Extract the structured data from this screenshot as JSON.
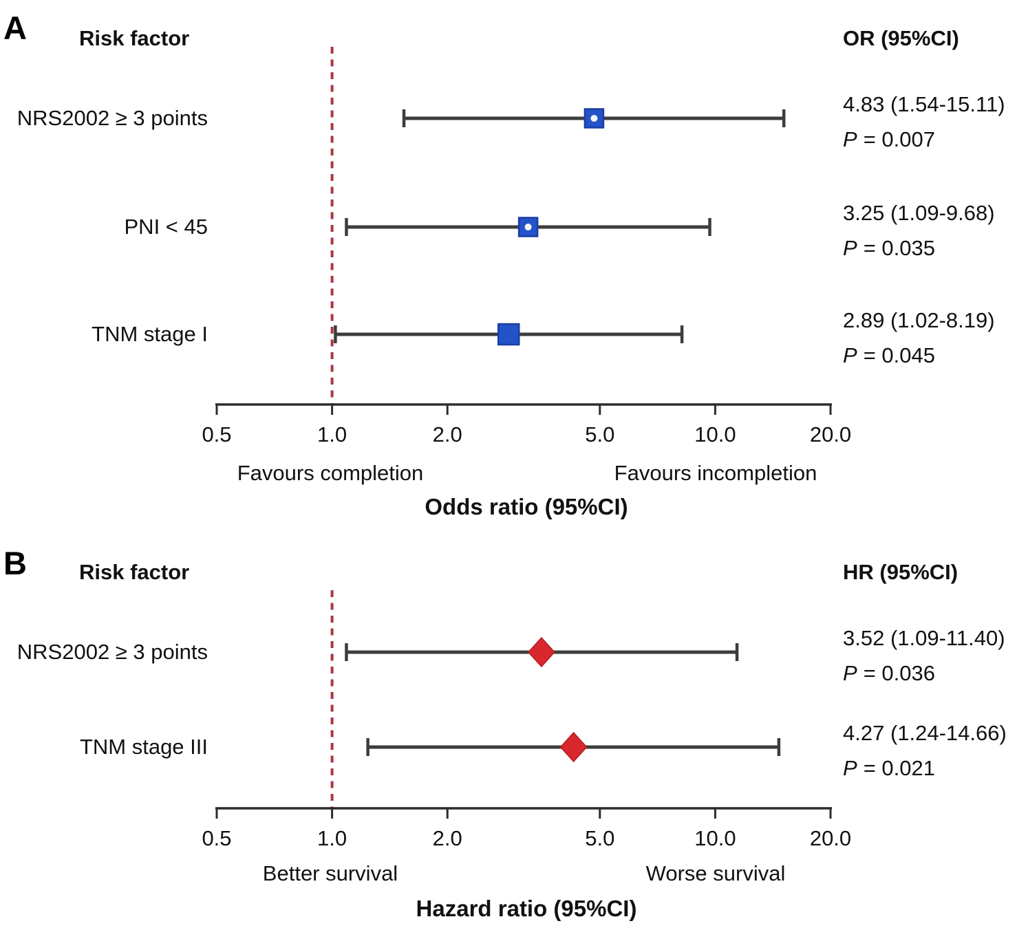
{
  "colors": {
    "reference_line": "#ad3540",
    "ci_bar": "#3d3d3d",
    "axis": "#2d2d2d",
    "marker_blue": "#2453c8",
    "marker_blue_edge": "#1a3da6",
    "marker_red": "#d8272d",
    "marker_red_edge": "#b01d22",
    "marker_center_dot": "#f4f7f7"
  },
  "chart_data": [
    {
      "type": "forest",
      "panel_letter": "A",
      "left_header": "Risk factor",
      "right_header": "OR (95%CI)",
      "x_scale": "log",
      "xlim": [
        0.5,
        20
      ],
      "x_ticks": [
        {
          "value": 0.5,
          "label": "0.5"
        },
        {
          "value": 1.0,
          "label": "1.0"
        },
        {
          "value": 2.0,
          "label": "2.0"
        },
        {
          "value": 5.0,
          "label": "5.0"
        },
        {
          "value": 10.0,
          "label": "10.0"
        },
        {
          "value": 20.0,
          "label": "20.0"
        }
      ],
      "reference_line": 1.0,
      "direction_left": "Favours completion",
      "direction_right": "Favours incompletion",
      "xlabel": "Odds ratio (95%CI)",
      "marker_shape": "square",
      "marker_color": "#2453c8",
      "rows": [
        {
          "label": "NRS2002 ≥ 3 points",
          "estimate": 4.83,
          "ci_low": 1.54,
          "ci_high": 15.11,
          "estimate_text": "4.83 (1.54-15.11)",
          "p_symbol": "P",
          "p_text": "= 0.007",
          "center_dot": true
        },
        {
          "label": "PNI < 45",
          "estimate": 3.25,
          "ci_low": 1.09,
          "ci_high": 9.68,
          "estimate_text": "3.25 (1.09-9.68)",
          "p_symbol": "P",
          "p_text": "= 0.035",
          "center_dot": true
        },
        {
          "label": "TNM stage I",
          "estimate": 2.89,
          "ci_low": 1.02,
          "ci_high": 8.19,
          "estimate_text": "2.89 (1.02-8.19)",
          "p_symbol": "P",
          "p_text": "= 0.045",
          "center_dot": false
        }
      ]
    },
    {
      "type": "forest",
      "panel_letter": "B",
      "left_header": "Risk factor",
      "right_header": "HR (95%CI)",
      "x_scale": "log",
      "xlim": [
        0.5,
        20
      ],
      "x_ticks": [
        {
          "value": 0.5,
          "label": "0.5"
        },
        {
          "value": 1.0,
          "label": "1.0"
        },
        {
          "value": 2.0,
          "label": "2.0"
        },
        {
          "value": 5.0,
          "label": "5.0"
        },
        {
          "value": 10.0,
          "label": "10.0"
        },
        {
          "value": 20.0,
          "label": "20.0"
        }
      ],
      "reference_line": 1.0,
      "direction_left": "Better survival",
      "direction_right": "Worse survival",
      "xlabel": "Hazard ratio (95%CI)",
      "marker_shape": "diamond",
      "marker_color": "#d8272d",
      "rows": [
        {
          "label": "NRS2002 ≥ 3 points",
          "estimate": 3.52,
          "ci_low": 1.09,
          "ci_high": 11.4,
          "estimate_text": "3.52 (1.09-11.40)",
          "p_symbol": "P",
          "p_text": "= 0.036"
        },
        {
          "label": "TNM stage III",
          "estimate": 4.27,
          "ci_low": 1.24,
          "ci_high": 14.66,
          "estimate_text": "4.27 (1.24-14.66)",
          "p_symbol": "P",
          "p_text": "= 0.021"
        }
      ]
    }
  ]
}
